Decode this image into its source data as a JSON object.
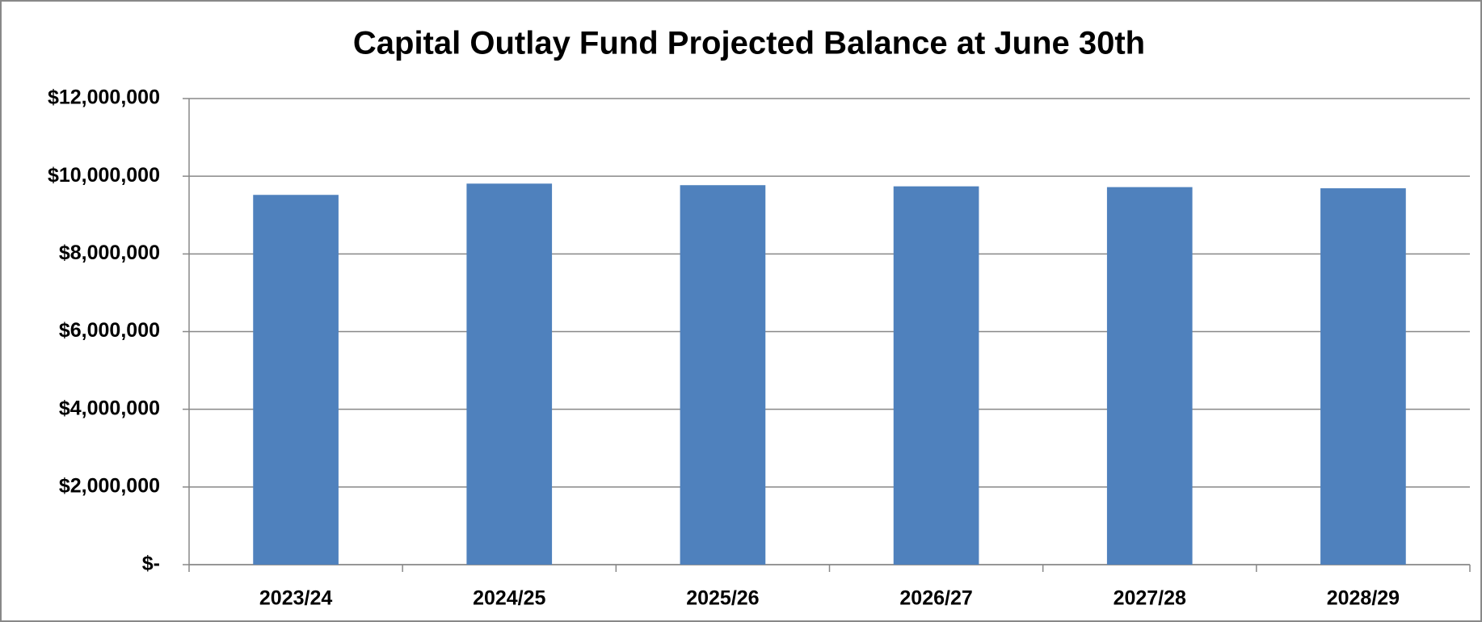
{
  "chart_data": {
    "type": "bar",
    "title": "Capital Outlay Fund Projected Balance at June 30th",
    "categories": [
      "2023/24",
      "2024/25",
      "2025/26",
      "2026/27",
      "2027/28",
      "2028/29"
    ],
    "values": [
      9520000,
      9810000,
      9770000,
      9740000,
      9720000,
      9690000
    ],
    "color": "#4f81bd",
    "ylim": [
      0,
      12000000
    ],
    "yticks": [
      {
        "value": 0,
        "label": "$-"
      },
      {
        "value": 2000000,
        "label": "$2,000,000"
      },
      {
        "value": 4000000,
        "label": "$4,000,000"
      },
      {
        "value": 6000000,
        "label": "$6,000,000"
      },
      {
        "value": 8000000,
        "label": "$8,000,000"
      },
      {
        "value": 10000000,
        "label": "$10,000,000"
      },
      {
        "value": 12000000,
        "label": "$12,000,000"
      }
    ],
    "grid": true
  }
}
